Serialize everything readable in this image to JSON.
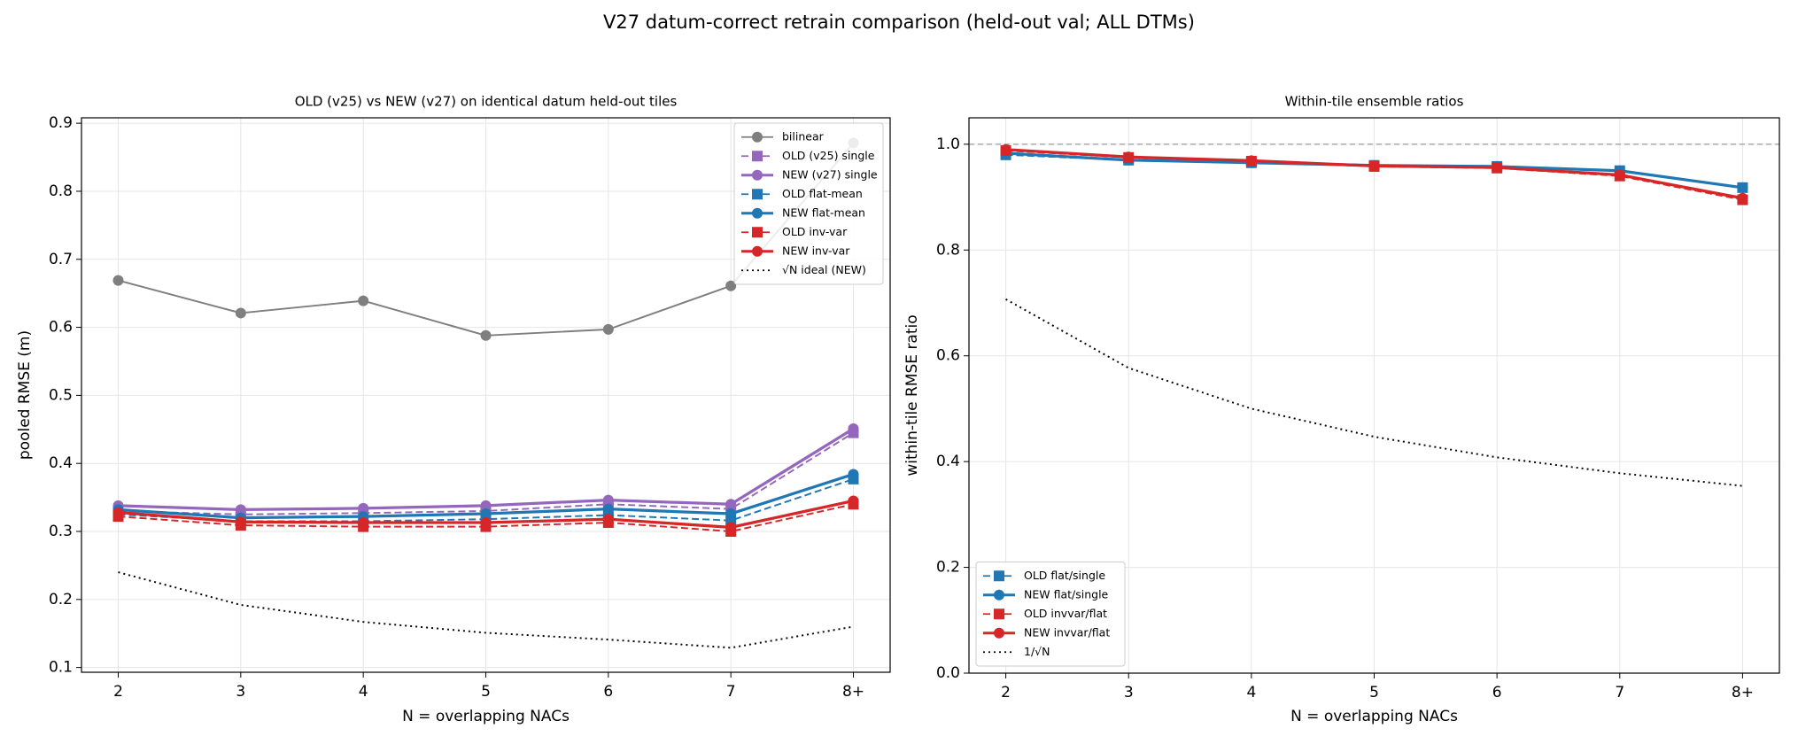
{
  "title": "V27 datum-correct retrain comparison (held-out val; ALL DTMs)",
  "chart_data": [
    {
      "type": "line",
      "title": "OLD (v25) vs NEW (v27) on identical datum held-out tiles",
      "xlabel": "N = overlapping NACs",
      "ylabel": "pooled RMSE (m)",
      "categories": [
        "2",
        "3",
        "4",
        "5",
        "6",
        "7",
        "8+"
      ],
      "ylim": [
        0.093,
        0.908
      ],
      "yticks": [
        0.1,
        0.2,
        0.3,
        0.4,
        0.5,
        0.6,
        0.7,
        0.8,
        0.9
      ],
      "grid": true,
      "legend": "upper-right",
      "series": [
        {
          "name": "bilinear",
          "color": "#7f7f7f",
          "linestyle": "solid",
          "linewidth": 1.5,
          "marker": "o",
          "values": [
            0.669,
            0.621,
            0.639,
            0.588,
            0.597,
            0.661,
            0.871
          ]
        },
        {
          "name": "OLD (v25) single",
          "color": "#9467bd",
          "linestyle": "dashed",
          "linewidth": 1.5,
          "marker": "s",
          "values": [
            0.33,
            0.325,
            0.327,
            0.33,
            0.34,
            0.333,
            0.445
          ]
        },
        {
          "name": "NEW (v27) single",
          "color": "#9467bd",
          "linestyle": "solid",
          "linewidth": 2.5,
          "marker": "o",
          "values": [
            0.338,
            0.332,
            0.334,
            0.338,
            0.346,
            0.34,
            0.451
          ]
        },
        {
          "name": "OLD flat-mean",
          "color": "#1f77b4",
          "linestyle": "dashed",
          "linewidth": 1.5,
          "marker": "s",
          "values": [
            0.325,
            0.315,
            0.315,
            0.318,
            0.324,
            0.316,
            0.377
          ]
        },
        {
          "name": "NEW flat-mean",
          "color": "#1f77b4",
          "linestyle": "solid",
          "linewidth": 2.5,
          "marker": "o",
          "values": [
            0.332,
            0.32,
            0.322,
            0.326,
            0.333,
            0.326,
            0.384
          ]
        },
        {
          "name": "OLD inv-var",
          "color": "#d62728",
          "linestyle": "dashed",
          "linewidth": 1.5,
          "marker": "s",
          "values": [
            0.322,
            0.309,
            0.307,
            0.307,
            0.313,
            0.3,
            0.34
          ]
        },
        {
          "name": "NEW inv-var",
          "color": "#d62728",
          "linestyle": "solid",
          "linewidth": 2.5,
          "marker": "o",
          "values": [
            0.328,
            0.314,
            0.313,
            0.313,
            0.318,
            0.306,
            0.345
          ]
        },
        {
          "name": "√N ideal (NEW)",
          "color": "#000000",
          "linestyle": "dotted",
          "linewidth": 1.5,
          "marker": null,
          "values": [
            0.24,
            0.192,
            0.167,
            0.151,
            0.141,
            0.129,
            0.16
          ]
        }
      ]
    },
    {
      "type": "line",
      "title": "Within-tile ensemble ratios",
      "xlabel": "N = overlapping NACs",
      "ylabel": "within-tile RMSE ratio",
      "categories": [
        "2",
        "3",
        "4",
        "5",
        "6",
        "7",
        "8+"
      ],
      "ylim": [
        0,
        1.05
      ],
      "yticks": [
        {
          "value": 0,
          "label": "0.0"
        },
        0.2,
        0.4,
        0.6,
        0.8,
        {
          "value": 1,
          "label": "1.0"
        }
      ],
      "grid": true,
      "legend": "lower-left",
      "reference_line": 1,
      "series": [
        {
          "name": "OLD flat/single",
          "color": "#1f77b4",
          "linestyle": "dashed",
          "linewidth": 1.5,
          "marker": "s",
          "values": [
            0.98,
            0.97,
            0.965,
            0.96,
            0.958,
            0.95,
            0.918
          ]
        },
        {
          "name": "NEW flat/single",
          "color": "#1f77b4",
          "linestyle": "solid",
          "linewidth": 2.5,
          "marker": "o",
          "values": [
            0.983,
            0.97,
            0.965,
            0.96,
            0.958,
            0.95,
            0.918
          ]
        },
        {
          "name": "OLD invvar/flat",
          "color": "#d62728",
          "linestyle": "dashed",
          "linewidth": 1.5,
          "marker": "s",
          "values": [
            0.988,
            0.975,
            0.968,
            0.958,
            0.955,
            0.94,
            0.895
          ]
        },
        {
          "name": "NEW invvar/flat",
          "color": "#d62728",
          "linestyle": "solid",
          "linewidth": 2.5,
          "marker": "o",
          "values": [
            0.99,
            0.976,
            0.969,
            0.959,
            0.956,
            0.942,
            0.898
          ]
        },
        {
          "name": "1/√N",
          "color": "#000000",
          "linestyle": "dotted",
          "linewidth": 1.5,
          "marker": null,
          "values": [
            0.707,
            0.577,
            0.5,
            0.447,
            0.408,
            0.378,
            0.354
          ]
        }
      ]
    }
  ]
}
